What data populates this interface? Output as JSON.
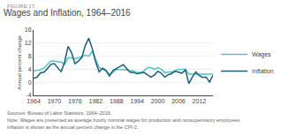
{
  "chart_data": {
    "type": "line",
    "title": "Wages and Inflation, 1964–2016",
    "subtitle": "FIGURE 17.",
    "ylabel": "Annual percent change",
    "annotations": [
      "Sources: Bureau of Labor Statistics, 1964–2016.",
      "Note: Wages are presented as average hourly nominal wages for production and nonsupervisory employees.",
      "Inflation is shown as the annual percent change in the CPI-2."
    ],
    "x": [
      1964,
      1965,
      1966,
      1967,
      1968,
      1969,
      1970,
      1971,
      1972,
      1973,
      1974,
      1975,
      1976,
      1977,
      1978,
      1979,
      1980,
      1981,
      1982,
      1983,
      1984,
      1985,
      1986,
      1987,
      1988,
      1989,
      1990,
      1991,
      1992,
      1993,
      1994,
      1995,
      1996,
      1997,
      1998,
      1999,
      2000,
      2001,
      2002,
      2003,
      2004,
      2005,
      2006,
      2007,
      2008,
      2009,
      2010,
      2011,
      2012,
      2013,
      2014,
      2015,
      2016
    ],
    "series": [
      {
        "name": "Wages",
        "color": "#4fc4c4",
        "values": [
          3.5,
          3.6,
          3.8,
          4.4,
          5.5,
          6.5,
          6.5,
          6.3,
          6.2,
          5.5,
          7.5,
          7.5,
          7.2,
          7.5,
          8.0,
          8.3,
          8.0,
          9.5,
          7.0,
          4.5,
          4.0,
          3.5,
          2.5,
          3.0,
          4.0,
          4.0,
          4.0,
          3.8,
          3.5,
          3.5,
          3.0,
          3.0,
          3.5,
          4.5,
          4.5,
          4.0,
          4.5,
          4.0,
          3.0,
          3.0,
          3.2,
          3.5,
          4.0,
          4.0,
          4.0,
          2.5,
          2.5,
          2.5,
          2.5,
          2.5,
          2.5,
          2.5,
          2.5
        ]
      },
      {
        "name": "Inflation",
        "color": "#1b5e7b",
        "values": [
          1.2,
          1.6,
          2.9,
          3.1,
          4.2,
          5.5,
          5.7,
          4.4,
          3.2,
          6.2,
          11.0,
          9.1,
          5.7,
          6.5,
          7.6,
          11.3,
          13.5,
          10.3,
          6.2,
          3.2,
          4.3,
          3.6,
          1.9,
          3.6,
          4.1,
          4.8,
          5.4,
          4.2,
          3.0,
          3.0,
          2.6,
          2.8,
          3.0,
          2.3,
          1.6,
          2.2,
          3.4,
          2.8,
          1.6,
          2.3,
          2.7,
          3.4,
          3.2,
          2.8,
          3.8,
          -0.4,
          1.6,
          3.2,
          2.1,
          1.5,
          1.6,
          0.1,
          2.1
        ]
      }
    ],
    "xlim": [
      1964,
      2016
    ],
    "xticks": [
      1964,
      1970,
      1976,
      1982,
      1988,
      1994,
      2000,
      2006,
      2012
    ],
    "ylim": [
      -4,
      16
    ],
    "yticks": [
      -4,
      0,
      4,
      8,
      12,
      16
    ],
    "grid": true,
    "legend": "right"
  }
}
